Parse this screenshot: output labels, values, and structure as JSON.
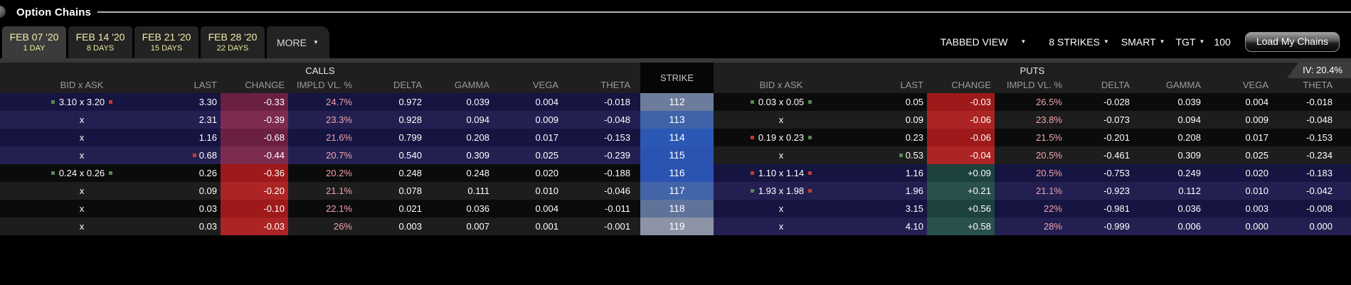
{
  "window": {
    "title": "Option Chains"
  },
  "tabs": [
    {
      "date": "FEB 07 '20",
      "days": "1 DAY",
      "selected": true
    },
    {
      "date": "FEB 14 '20",
      "days": "8 DAYS",
      "selected": false
    },
    {
      "date": "FEB 21 '20",
      "days": "15 DAYS",
      "selected": false
    },
    {
      "date": "FEB 28 '20",
      "days": "22 DAYS",
      "selected": false
    }
  ],
  "more_label": "MORE",
  "controls": {
    "view_mode": "TABBED VIEW",
    "strikes": "8 STRIKES",
    "exchange": "SMART",
    "tgt": "TGT",
    "quantity": "100",
    "load_button": "Load My Chains"
  },
  "table": {
    "calls_label": "CALLS",
    "puts_label": "PUTS",
    "strike_label": "STRIKE",
    "iv_badge": "IV: 20.4%",
    "no_quote_text": "x",
    "columns": [
      "BID x ASK",
      "LAST",
      "CHANGE",
      "IMPLD VL. %",
      "DELTA",
      "GAMMA",
      "VEGA",
      "THETA"
    ],
    "colors": {
      "change_negative_on_navy": "#6b1f43",
      "change_negative_on_black": "#9e1919",
      "change_positive_on_navy": "#1d413d",
      "itm_row": "#161440",
      "otm_row": "#0b0b0b",
      "atm_divider": "#3c3f92",
      "impld_text": "#f0a3ab",
      "marker_green": "#55894f",
      "marker_red": "#c23b2c"
    },
    "rows": [
      {
        "strike": "112",
        "strike_color": "#6d7c9c",
        "calls": {
          "bid": "3.10",
          "ask": "3.20",
          "bid_marker": "g",
          "ask_marker": "r",
          "last": "3.30",
          "last_marker": null,
          "change": "-0.33",
          "impld_vl": "24.7%",
          "delta": "0.972",
          "gamma": "0.039",
          "vega": "0.004",
          "theta": "-0.018"
        },
        "puts": {
          "bid": "0.03",
          "ask": "0.05",
          "bid_marker": "g",
          "ask_marker": "g",
          "last": "0.05",
          "last_marker": null,
          "change": "-0.03",
          "impld_vl": "26.5%",
          "delta": "-0.028",
          "gamma": "0.039",
          "vega": "0.004",
          "theta": "-0.018"
        }
      },
      {
        "strike": "113",
        "strike_color": "#3f62a8",
        "calls": {
          "bid": null,
          "ask": null,
          "bid_marker": null,
          "ask_marker": null,
          "last": "2.31",
          "last_marker": null,
          "change": "-0.39",
          "impld_vl": "23.3%",
          "delta": "0.928",
          "gamma": "0.094",
          "vega": "0.009",
          "theta": "-0.048"
        },
        "puts": {
          "bid": null,
          "ask": null,
          "bid_marker": null,
          "ask_marker": null,
          "last": "0.09",
          "last_marker": null,
          "change": "-0.06",
          "impld_vl": "23.8%",
          "delta": "-0.073",
          "gamma": "0.094",
          "vega": "0.009",
          "theta": "-0.048"
        }
      },
      {
        "strike": "114",
        "strike_color": "#2b57b5",
        "calls": {
          "bid": null,
          "ask": null,
          "bid_marker": null,
          "ask_marker": null,
          "last": "1.16",
          "last_marker": null,
          "change": "-0.68",
          "impld_vl": "21.6%",
          "delta": "0.799",
          "gamma": "0.208",
          "vega": "0.017",
          "theta": "-0.153"
        },
        "puts": {
          "bid": "0.19",
          "ask": "0.23",
          "bid_marker": "r",
          "ask_marker": "g",
          "last": "0.23",
          "last_marker": null,
          "change": "-0.06",
          "impld_vl": "21.5%",
          "delta": "-0.201",
          "gamma": "0.208",
          "vega": "0.017",
          "theta": "-0.153"
        }
      },
      {
        "strike": "115",
        "strike_color": "#2b54b2",
        "calls": {
          "bid": null,
          "ask": null,
          "bid_marker": null,
          "ask_marker": null,
          "last": "0.68",
          "last_marker": "r",
          "change": "-0.44",
          "impld_vl": "20.7%",
          "delta": "0.540",
          "gamma": "0.309",
          "vega": "0.025",
          "theta": "-0.239"
        },
        "puts": {
          "bid": null,
          "ask": null,
          "bid_marker": null,
          "ask_marker": null,
          "last": "0.53",
          "last_marker": "g",
          "change": "-0.04",
          "impld_vl": "20.5%",
          "delta": "-0.461",
          "gamma": "0.309",
          "vega": "0.025",
          "theta": "-0.234"
        }
      },
      {
        "strike": "116",
        "strike_color": "#2b54b2",
        "calls": {
          "bid": "0.24",
          "ask": "0.26",
          "bid_marker": "g",
          "ask_marker": "g",
          "last": "0.26",
          "last_marker": null,
          "change": "-0.36",
          "impld_vl": "20.2%",
          "delta": "0.248",
          "gamma": "0.248",
          "vega": "0.020",
          "theta": "-0.188"
        },
        "puts": {
          "bid": "1.10",
          "ask": "1.14",
          "bid_marker": "r",
          "ask_marker": "r",
          "last": "1.16",
          "last_marker": null,
          "change": "+0.09",
          "impld_vl": "20.5%",
          "delta": "-0.753",
          "gamma": "0.249",
          "vega": "0.020",
          "theta": "-0.183"
        }
      },
      {
        "strike": "117",
        "strike_color": "#4165a8",
        "calls": {
          "bid": null,
          "ask": null,
          "bid_marker": null,
          "ask_marker": null,
          "last": "0.09",
          "last_marker": null,
          "change": "-0.20",
          "impld_vl": "21.1%",
          "delta": "0.078",
          "gamma": "0.111",
          "vega": "0.010",
          "theta": "-0.046"
        },
        "puts": {
          "bid": "1.93",
          "ask": "1.98",
          "bid_marker": "g",
          "ask_marker": "r",
          "last": "1.96",
          "last_marker": null,
          "change": "+0.21",
          "impld_vl": "21.1%",
          "delta": "-0.923",
          "gamma": "0.112",
          "vega": "0.010",
          "theta": "-0.042"
        }
      },
      {
        "strike": "118",
        "strike_color": "#5f7299",
        "calls": {
          "bid": null,
          "ask": null,
          "bid_marker": null,
          "ask_marker": null,
          "last": "0.03",
          "last_marker": null,
          "change": "-0.10",
          "impld_vl": "22.1%",
          "delta": "0.021",
          "gamma": "0.036",
          "vega": "0.004",
          "theta": "-0.011"
        },
        "puts": {
          "bid": null,
          "ask": null,
          "bid_marker": null,
          "ask_marker": null,
          "last": "3.15",
          "last_marker": null,
          "change": "+0.56",
          "impld_vl": "22%",
          "delta": "-0.981",
          "gamma": "0.036",
          "vega": "0.003",
          "theta": "-0.008"
        }
      },
      {
        "strike": "119",
        "strike_color": "#8b93a4",
        "calls": {
          "bid": null,
          "ask": null,
          "bid_marker": null,
          "ask_marker": null,
          "last": "0.03",
          "last_marker": null,
          "change": "-0.03",
          "impld_vl": "26%",
          "delta": "0.003",
          "gamma": "0.007",
          "vega": "0.001",
          "theta": "-0.001"
        },
        "puts": {
          "bid": null,
          "ask": null,
          "bid_marker": null,
          "ask_marker": null,
          "last": "4.10",
          "last_marker": null,
          "change": "+0.58",
          "impld_vl": "28%",
          "delta": "-0.999",
          "gamma": "0.006",
          "vega": "0.000",
          "theta": "0.000"
        }
      }
    ]
  }
}
